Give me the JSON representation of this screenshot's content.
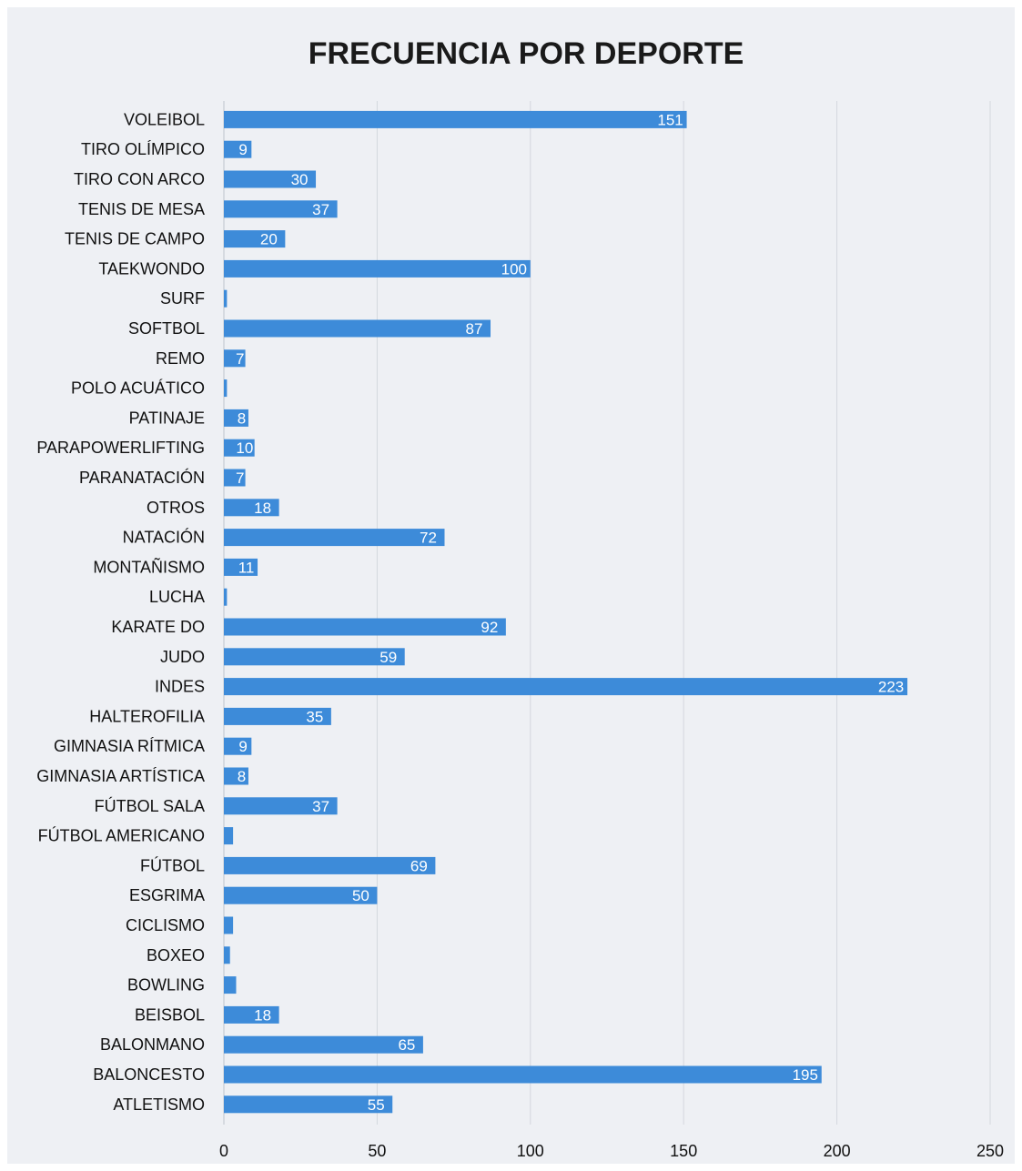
{
  "chart_data": {
    "type": "bar",
    "orientation": "horizontal",
    "title": "FRECUENCIA POR DEPORTE",
    "xlabel": "",
    "ylabel": "",
    "xlim": [
      0,
      250
    ],
    "x_ticks": [
      0,
      50,
      100,
      150,
      200,
      250
    ],
    "grid": "vertical",
    "bar_color": "#3d8bd9",
    "categories": [
      "VOLEIBOL",
      "TIRO OLÍMPICO",
      "TIRO CON ARCO",
      "TENIS DE MESA",
      "TENIS DE CAMPO",
      "TAEKWONDO",
      "SURF",
      "SOFTBOL",
      "REMO",
      "POLO ACUÁTICO",
      "PATINAJE",
      "PARAPOWERLIFTING",
      "PARANATACIÓN",
      "OTROS",
      "NATACIÓN",
      "MONTAÑISMO",
      "LUCHA",
      "KARATE DO",
      "JUDO",
      "INDES",
      "HALTEROFILIA",
      "GIMNASIA RÍTMICA",
      "GIMNASIA ARTÍSTICA",
      "FÚTBOL SALA",
      "FÚTBOL AMERICANO",
      "FÚTBOL",
      "ESGRIMA",
      "CICLISMO",
      "BOXEO",
      "BOWLING",
      "BEISBOL",
      "BALONMANO",
      "BALONCESTO",
      "ATLETISMO"
    ],
    "values": [
      151,
      9,
      30,
      37,
      20,
      100,
      1,
      87,
      7,
      1,
      8,
      10,
      7,
      18,
      72,
      11,
      1,
      92,
      59,
      223,
      35,
      9,
      8,
      37,
      3,
      69,
      50,
      3,
      2,
      4,
      18,
      65,
      195,
      55
    ],
    "data_labels": [
      "151",
      "9",
      "30",
      "37",
      "20",
      "100",
      "",
      "87",
      "7",
      "",
      "8",
      "10",
      "7",
      "18",
      "72",
      "11",
      "",
      "92",
      "59",
      "223",
      "35",
      "9",
      "8",
      "37",
      "",
      "69",
      "50",
      "",
      "",
      "",
      "18",
      "65",
      "195",
      "55"
    ]
  }
}
